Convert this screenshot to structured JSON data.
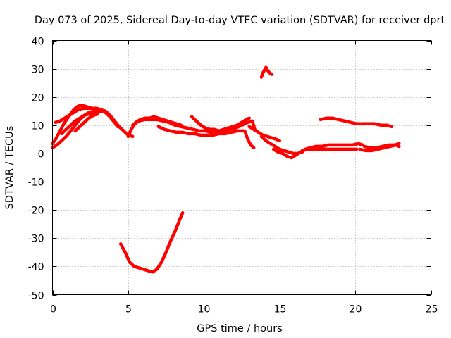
{
  "chart_data": {
    "type": "line",
    "title": "Day 073 of 2025, Sidereal Day-to-day VTEC variation (SDTVAR) for receiver dprt",
    "xlabel": "GPS time / hours",
    "ylabel": "SDTVAR / TECUs",
    "xlim": [
      0,
      25
    ],
    "ylim": [
      -50,
      40
    ],
    "xticks": [
      0,
      5,
      10,
      15,
      20,
      25
    ],
    "yticks": [
      40,
      30,
      20,
      10,
      0,
      -10,
      -20,
      -30,
      -40,
      -50
    ],
    "xtick_labels": [
      "0",
      "5",
      "10",
      "15",
      "20",
      "25"
    ],
    "ytick_labels": [
      "40",
      "30",
      "20",
      "10",
      "0",
      "-10",
      "-20",
      "-30",
      "-40",
      "-50"
    ],
    "grid": true,
    "legend": "none",
    "color": "#ff0000",
    "series": [
      {
        "name": "arc-1",
        "x": [
          0.0,
          0.2,
          0.4,
          0.6,
          0.8,
          1.0,
          1.2,
          1.4,
          1.6,
          1.8,
          2.0,
          2.3,
          2.6,
          2.9,
          3.2,
          3.5,
          3.8,
          4.1,
          4.4,
          4.7,
          5.0,
          5.3
        ],
        "y": [
          3.5,
          5.0,
          7.0,
          9.0,
          11.0,
          12.5,
          14.0,
          15.5,
          16.5,
          17.0,
          17.0,
          16.5,
          16.0,
          16.0,
          15.5,
          15.0,
          13.5,
          11.5,
          9.5,
          8.0,
          6.5,
          6.0
        ]
      },
      {
        "name": "arc-2",
        "x": [
          0.0,
          0.3,
          0.6,
          0.9,
          1.2,
          1.5,
          1.8,
          2.1,
          2.4,
          2.7,
          3.0,
          3.3
        ],
        "y": [
          2.0,
          3.0,
          4.5,
          6.0,
          8.0,
          10.0,
          12.0,
          13.5,
          14.5,
          15.0,
          15.0,
          15.0
        ]
      },
      {
        "name": "arc-3",
        "x": [
          0.2,
          0.5,
          0.8,
          1.1,
          1.4,
          1.7,
          2.0,
          2.3,
          2.6,
          2.9,
          3.2,
          3.5,
          3.8,
          4.1,
          4.3
        ],
        "y": [
          11.0,
          11.5,
          12.5,
          13.5,
          14.5,
          15.5,
          16.0,
          16.0,
          16.0,
          16.0,
          15.5,
          14.5,
          13.0,
          11.0,
          9.5
        ]
      },
      {
        "name": "arc-4",
        "x": [
          0.6,
          0.9,
          1.2,
          1.5,
          1.8,
          2.1,
          2.4,
          2.7
        ],
        "y": [
          7.0,
          8.5,
          10.0,
          11.5,
          12.5,
          13.5,
          14.0,
          14.5
        ]
      },
      {
        "name": "arc-5",
        "x": [
          1.5,
          1.8,
          2.1,
          2.4,
          2.7,
          3.0
        ],
        "y": [
          8.0,
          9.5,
          11.0,
          12.5,
          13.5,
          14.0
        ]
      },
      {
        "name": "arc-6",
        "x": [
          5.0,
          5.2,
          5.5,
          5.8,
          6.1,
          6.4,
          6.7,
          7.0,
          7.3,
          7.6,
          7.9,
          8.2,
          8.5
        ],
        "y": [
          6.0,
          8.5,
          11.0,
          12.0,
          12.5,
          12.5,
          13.0,
          12.5,
          12.0,
          11.5,
          11.0,
          10.5,
          10.0
        ]
      },
      {
        "name": "arc-7",
        "x": [
          5.3,
          5.7,
          6.1,
          6.5,
          6.9,
          7.3,
          7.7,
          8.1,
          8.5,
          8.9,
          9.3,
          9.7,
          10.1,
          10.5,
          10.9,
          11.3,
          11.7,
          12.1,
          12.5,
          12.9,
          13.2,
          13.4
        ],
        "y": [
          10.0,
          11.5,
          12.0,
          12.0,
          12.0,
          11.5,
          11.0,
          10.0,
          9.5,
          9.0,
          8.5,
          8.0,
          8.0,
          7.5,
          8.0,
          8.0,
          8.5,
          9.0,
          10.0,
          11.0,
          11.5,
          8.0
        ]
      },
      {
        "name": "arc-8",
        "x": [
          7.0,
          7.4,
          7.8,
          8.2,
          8.6,
          9.0,
          9.4,
          9.8,
          10.2,
          10.6,
          11.0,
          11.4,
          11.8,
          12.2,
          12.6
        ],
        "y": [
          9.5,
          8.5,
          8.0,
          7.5,
          7.5,
          7.0,
          7.0,
          6.5,
          6.5,
          6.5,
          7.0,
          7.0,
          7.5,
          8.0,
          8.0
        ]
      },
      {
        "name": "arc-9",
        "x": [
          9.2,
          9.5,
          9.8,
          10.1,
          10.4,
          10.7,
          11.0,
          11.3,
          11.6,
          11.9,
          12.2,
          12.5,
          12.8,
          13.0
        ],
        "y": [
          13.0,
          11.5,
          10.0,
          9.0,
          8.5,
          8.5,
          8.0,
          8.5,
          9.0,
          9.5,
          10.0,
          11.0,
          12.0,
          12.5
        ]
      },
      {
        "name": "arc-10",
        "x": [
          12.7,
          12.9,
          13.1,
          13.3
        ],
        "y": [
          8.0,
          5.0,
          3.0,
          2.0
        ]
      },
      {
        "name": "arc-11",
        "x": [
          13.0,
          13.3,
          13.6,
          13.9,
          14.2,
          14.5,
          14.8,
          15.0
        ],
        "y": [
          9.5,
          8.5,
          7.5,
          6.5,
          6.0,
          5.5,
          5.0,
          4.5
        ]
      },
      {
        "name": "arc-12",
        "x": [
          13.8,
          14.1,
          14.4,
          14.7,
          15.0,
          15.3,
          15.6,
          15.9,
          16.2,
          16.5
        ],
        "y": [
          6.0,
          4.5,
          3.5,
          2.5,
          1.5,
          1.0,
          0.5,
          0.0,
          0.0,
          0.5
        ]
      },
      {
        "name": "arc-13",
        "x": [
          14.6,
          14.9,
          15.2,
          15.5,
          15.8,
          16.1,
          16.4,
          16.7,
          17.0,
          17.4,
          17.8,
          18.2,
          18.6,
          19.0,
          19.4,
          19.8,
          20.2,
          20.5
        ],
        "y": [
          1.5,
          0.5,
          0.0,
          -1.0,
          -1.5,
          -0.5,
          0.5,
          1.5,
          2.0,
          2.5,
          2.5,
          3.0,
          3.0,
          3.0,
          3.0,
          3.0,
          3.5,
          3.0
        ]
      },
      {
        "name": "arc-14",
        "x": [
          16.5,
          16.9,
          17.3,
          17.7,
          18.1,
          18.5,
          18.9,
          19.3,
          19.7,
          20.1
        ],
        "y": [
          1.0,
          1.5,
          1.5,
          1.5,
          1.5,
          1.5,
          1.5,
          1.5,
          1.5,
          1.5
        ]
      },
      {
        "name": "arc-15",
        "x": [
          20.3,
          20.7,
          21.1,
          21.5,
          21.9,
          22.3,
          22.7,
          22.9
        ],
        "y": [
          1.5,
          1.0,
          1.0,
          1.5,
          2.0,
          2.5,
          3.0,
          2.5
        ]
      },
      {
        "name": "arc-16",
        "x": [
          20.6,
          21.0,
          21.4,
          21.8,
          22.2,
          22.6,
          22.9
        ],
        "y": [
          2.5,
          2.0,
          2.0,
          2.5,
          3.0,
          3.0,
          3.5
        ]
      },
      {
        "name": "arc-17",
        "x": [
          17.7,
          18.1,
          18.5,
          18.9,
          19.3,
          19.7,
          20.1,
          20.5,
          20.9,
          21.3,
          21.7,
          22.1,
          22.4
        ],
        "y": [
          12.0,
          12.5,
          12.5,
          12.0,
          11.5,
          11.0,
          10.5,
          10.5,
          10.5,
          10.5,
          10.0,
          10.0,
          9.5
        ]
      },
      {
        "name": "arc-18",
        "x": [
          13.8,
          13.9,
          14.0,
          14.1,
          14.2,
          14.35,
          14.5
        ],
        "y": [
          27.0,
          28.5,
          29.5,
          30.5,
          29.5,
          28.5,
          28.0
        ]
      },
      {
        "name": "arc-19",
        "x": [
          4.5,
          4.8,
          5.1,
          5.4,
          5.7,
          6.0,
          6.3,
          6.6,
          6.9,
          7.2,
          7.5,
          7.8,
          8.1,
          8.4,
          8.6
        ],
        "y": [
          -32.0,
          -35.0,
          -38.5,
          -40.0,
          -40.5,
          -41.0,
          -41.5,
          -42.0,
          -41.0,
          -38.5,
          -35.0,
          -31.0,
          -27.5,
          -23.5,
          -21.0
        ]
      }
    ]
  }
}
